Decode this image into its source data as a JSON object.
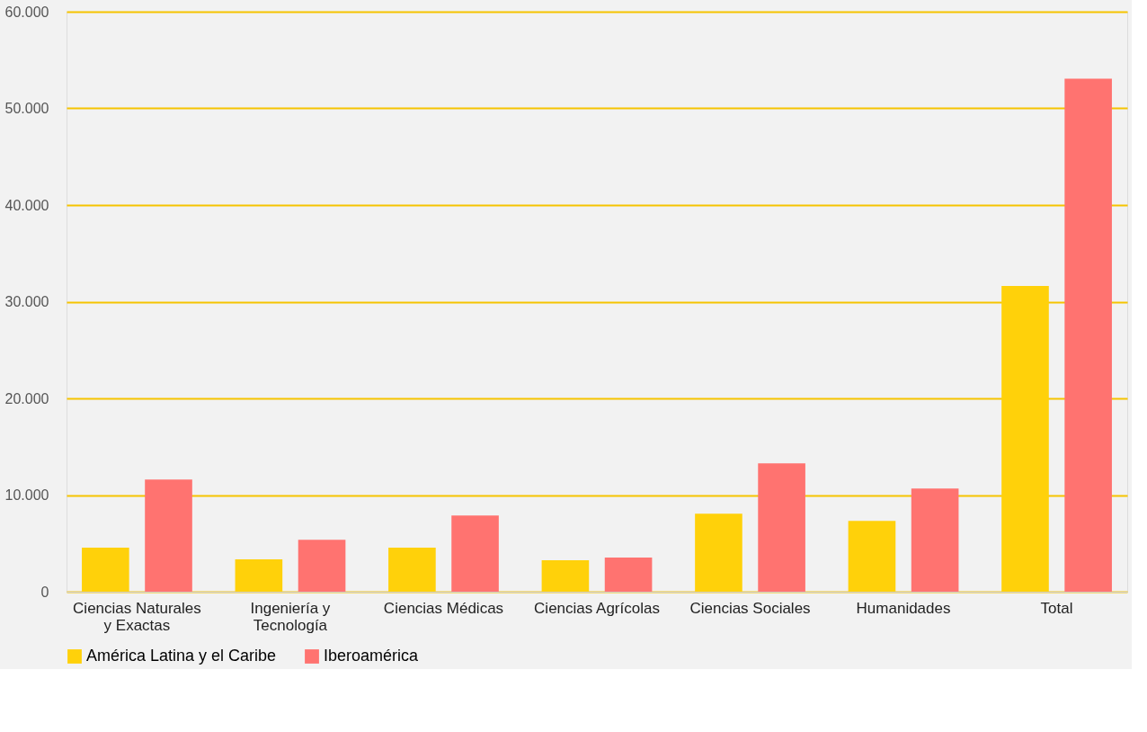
{
  "chart_data": {
    "type": "bar",
    "categories": [
      "Ciencias Naturales\ny Exactas",
      "Ingeniería y\nTecnología",
      "Ciencias Médicas",
      "Ciencias Agrícolas",
      "Ciencias Sociales",
      "Humanidades",
      "Total"
    ],
    "series": [
      {
        "name": "América Latina y el Caribe",
        "color": "#ffd10a",
        "values": [
          4550,
          3340,
          4550,
          3250,
          8070,
          7330,
          31630
        ]
      },
      {
        "name": "Iberoamérica",
        "color": "#ff7370",
        "values": [
          11600,
          5380,
          7890,
          3530,
          13270,
          10670,
          53060
        ]
      }
    ],
    "ylim": [
      0,
      60000
    ],
    "yticks": [
      {
        "value": 0,
        "label": "0"
      },
      {
        "value": 10000,
        "label": "10.000"
      },
      {
        "value": 20000,
        "label": "20.000"
      },
      {
        "value": 30000,
        "label": "30.000"
      },
      {
        "value": 40000,
        "label": "40.000"
      },
      {
        "value": 50000,
        "label": "50.000"
      },
      {
        "value": 60000,
        "label": "60.000"
      }
    ],
    "grid": "y",
    "legend": "bottom"
  }
}
